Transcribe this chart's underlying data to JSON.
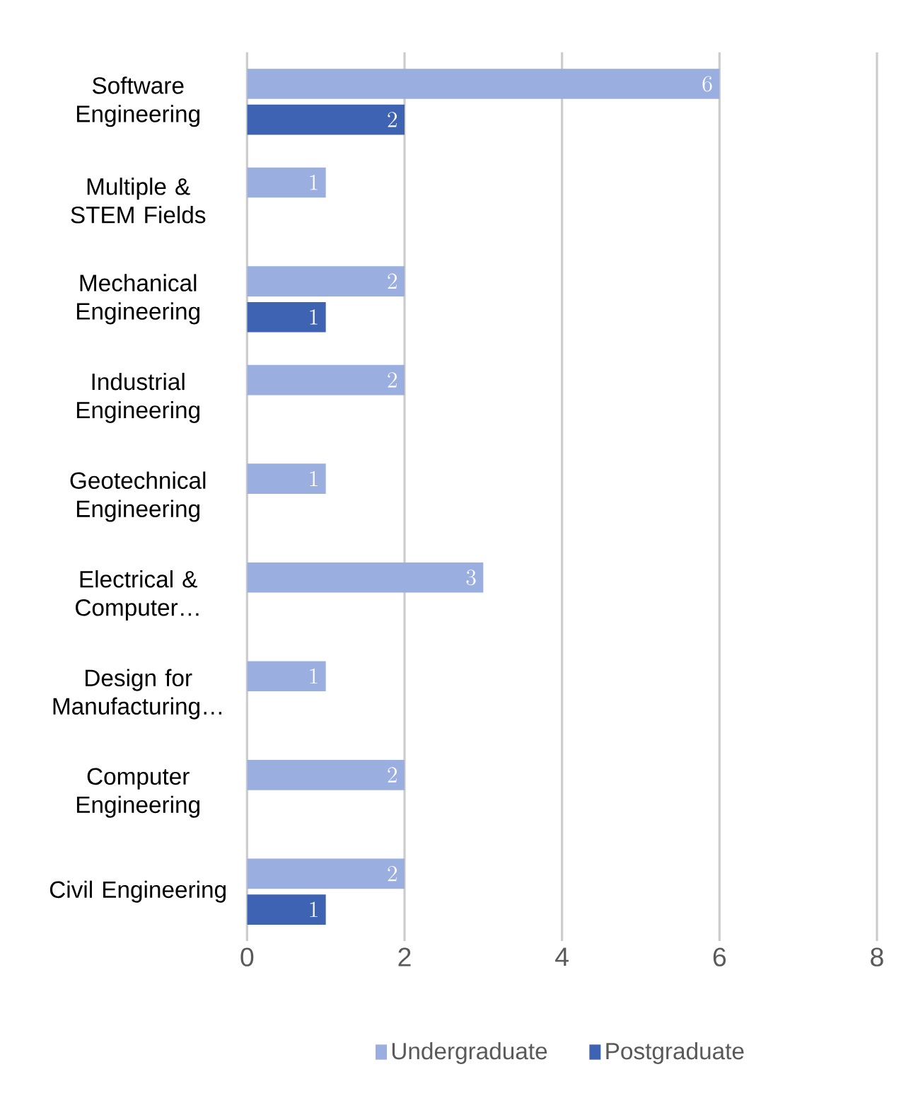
{
  "chart_data": {
    "type": "bar",
    "orientation": "horizontal",
    "categories": [
      "Software Engineering",
      "Multiple & STEM Fields",
      "Mechanical Engineering",
      "Industrial Engineering",
      "Geotechnical Engineering",
      "Electrical & Computer…",
      "Design for Manufacturing…",
      "Computer Engineering",
      "Civil Engineering"
    ],
    "series": [
      {
        "name": "Undergraduate",
        "color": "#9aaedf",
        "values": [
          6,
          1,
          2,
          2,
          1,
          3,
          1,
          2,
          2
        ]
      },
      {
        "name": "Postgraduate",
        "color": "#3f63b3",
        "values": [
          2,
          null,
          1,
          null,
          null,
          null,
          null,
          null,
          1
        ]
      }
    ],
    "xlim": [
      0,
      8
    ],
    "xticks": [
      0,
      2,
      4,
      6,
      8
    ],
    "grid": "x",
    "legend": "bottom",
    "data_labels": true
  }
}
